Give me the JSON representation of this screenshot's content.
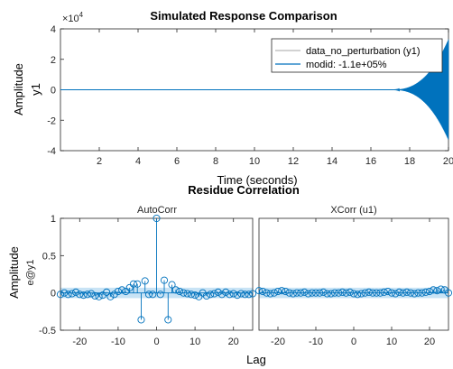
{
  "figure": {
    "background": "#ffffff",
    "line_color": "#0072bd",
    "noise_color": "#b7b7b7",
    "conf_band_color": "#c8e3f5"
  },
  "chart_data": [
    {
      "id": "response",
      "type": "line",
      "title": "Simulated Response Comparison",
      "xlabel": "Time (seconds)",
      "ylabel": "Amplitude",
      "ylabel2": "y1",
      "y_exponent_label": "×10",
      "y_exponent_power": "4",
      "xlim": [
        0,
        20
      ],
      "ylim": [
        -40000,
        40000
      ],
      "xticks": [
        2,
        4,
        6,
        8,
        10,
        12,
        14,
        16,
        18,
        20
      ],
      "yticks": [
        -40000,
        -20000,
        0,
        20000,
        40000
      ],
      "yticklabels": [
        "-4",
        "-2",
        "0",
        "2",
        "4"
      ],
      "grid": false,
      "legend_position": "top-right",
      "growth": {
        "t_onset": 17,
        "t_end": 20,
        "final_amplitude": 33000
      },
      "series": [
        {
          "name": "data_no_perturbation (y1)",
          "color": "#b7b7b7",
          "style": "flat"
        },
        {
          "name": "modid: -1.1e+05%",
          "color": "#0072bd",
          "style": "growing-oscillation"
        }
      ]
    },
    {
      "id": "autocorr",
      "type": "stem",
      "title": "AutoCorr",
      "ylabel": "Amplitude",
      "ylabel2": "e@y1",
      "xlim": [
        -25,
        25
      ],
      "ylim": [
        -0.5,
        1
      ],
      "xticks": [
        -20,
        -10,
        0,
        10,
        20
      ],
      "yticks": [
        -0.5,
        0,
        0.5,
        1
      ],
      "yticklabels": [
        "-0.5",
        "0",
        "0.5",
        "1"
      ],
      "confidence_band": [
        -0.07,
        0.07
      ],
      "lags": [
        -25,
        -24,
        -23,
        -22,
        -21,
        -20,
        -19,
        -18,
        -17,
        -16,
        -15,
        -14,
        -13,
        -12,
        -11,
        -10,
        -9,
        -8,
        -7,
        -6,
        -5,
        -4,
        -3,
        -2,
        -1,
        0,
        1,
        2,
        3,
        4,
        5,
        6,
        7,
        8,
        9,
        10,
        11,
        12,
        13,
        14,
        15,
        16,
        17,
        18,
        19,
        20,
        21,
        22,
        23,
        24,
        25
      ],
      "values": [
        -0.02,
        0.0,
        -0.02,
        -0.01,
        0.01,
        -0.02,
        -0.03,
        -0.02,
        -0.01,
        -0.04,
        -0.05,
        -0.03,
        0.01,
        -0.05,
        -0.02,
        0.02,
        0.04,
        0.02,
        0.07,
        0.12,
        0.12,
        -0.36,
        0.16,
        -0.02,
        -0.02,
        1.0,
        -0.02,
        0.17,
        -0.36,
        0.11,
        0.04,
        0.02,
        0.0,
        -0.01,
        -0.02,
        -0.03,
        -0.05,
        0.0,
        -0.04,
        -0.02,
        -0.01,
        0.01,
        -0.02,
        0.01,
        -0.02,
        -0.01,
        -0.03,
        -0.01,
        -0.02,
        -0.02,
        -0.01
      ]
    },
    {
      "id": "xcorr",
      "type": "stem",
      "title": "XCorr (u1)",
      "xlabel": "Lag",
      "xlim": [
        -25,
        25
      ],
      "ylim": [
        -0.5,
        1
      ],
      "xticks": [
        -20,
        -10,
        0,
        10,
        20
      ],
      "confidence_band": [
        -0.07,
        0.07
      ],
      "lags": [
        -25,
        -24,
        -23,
        -22,
        -21,
        -20,
        -19,
        -18,
        -17,
        -16,
        -15,
        -14,
        -13,
        -12,
        -11,
        -10,
        -9,
        -8,
        -7,
        -6,
        -5,
        -4,
        -3,
        -2,
        -1,
        0,
        1,
        2,
        3,
        4,
        5,
        6,
        7,
        8,
        9,
        10,
        11,
        12,
        13,
        14,
        15,
        16,
        17,
        18,
        19,
        20,
        21,
        22,
        23,
        24,
        25
      ],
      "values": [
        0.03,
        0.02,
        0.0,
        -0.01,
        0.0,
        0.02,
        0.03,
        0.02,
        0.0,
        -0.01,
        0.0,
        0.0,
        0.01,
        -0.01,
        0.0,
        0.0,
        0.0,
        0.01,
        -0.01,
        -0.01,
        0.0,
        0.0,
        0.01,
        0.0,
        0.01,
        -0.01,
        -0.02,
        -0.01,
        0.0,
        0.01,
        0.0,
        0.0,
        0.0,
        0.01,
        0.02,
        0.0,
        -0.01,
        0.01,
        0.0,
        0.01,
        0.0,
        -0.01,
        0.0,
        0.0,
        0.01,
        0.02,
        0.04,
        0.03,
        0.05,
        0.04,
        0.0
      ]
    }
  ],
  "residue_title": "Residue Correlation",
  "residue_xlabel": "Lag"
}
